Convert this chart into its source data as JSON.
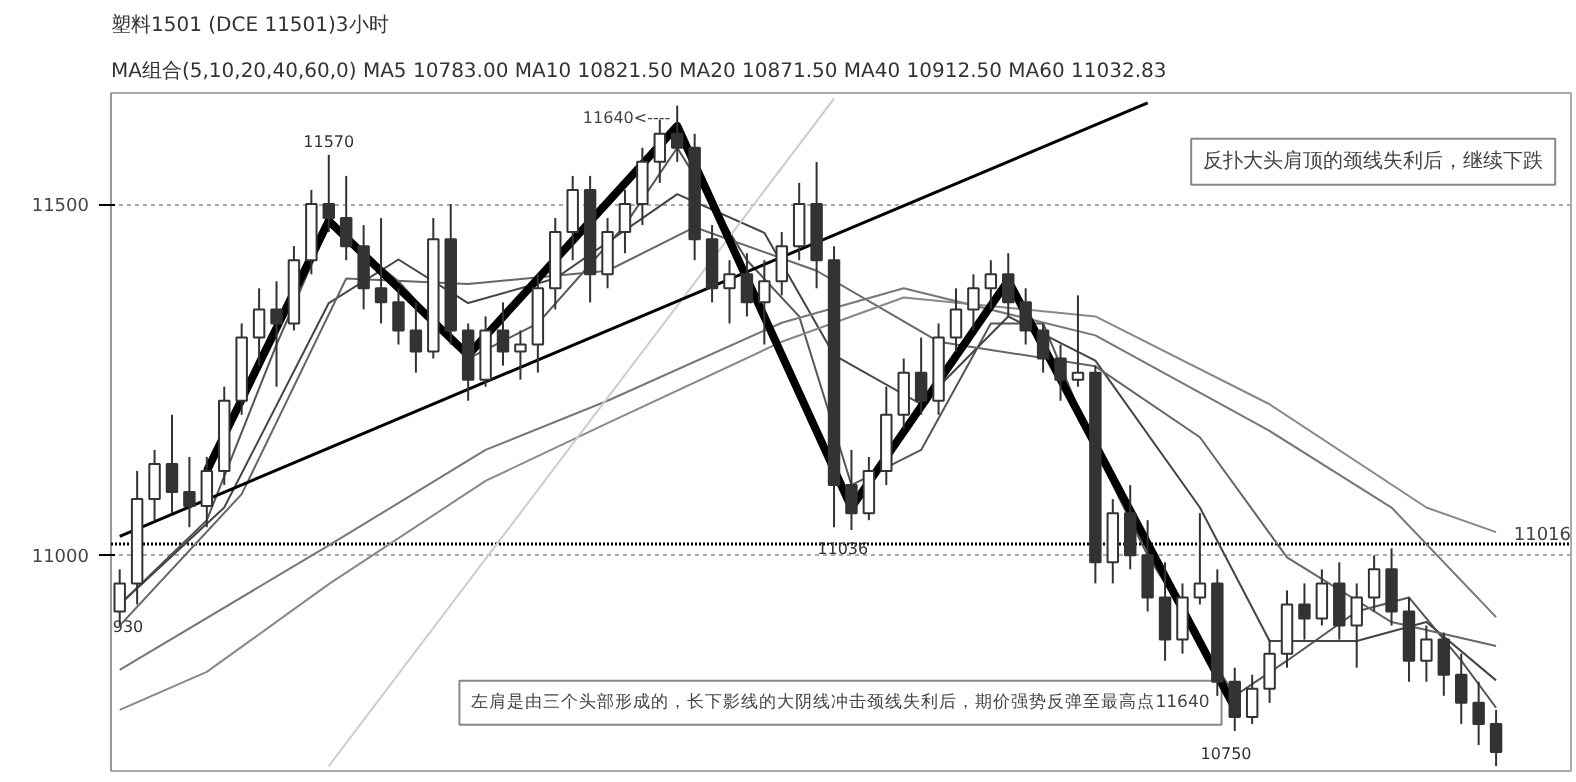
{
  "chart_data": {
    "type": "candlestick",
    "title": "塑料1501 (DCE 11501)3小时",
    "subtitle": "MA组合(5,10,20,40,60,0)  MA5 10783.00    MA10 10821.50    MA20 10871.50    MA40 10912.50    MA60 11032.83",
    "categories": [
      null,
      null,
      null,
      null,
      null,
      null,
      null,
      null,
      null,
      null,
      null,
      null,
      null,
      null,
      null,
      null,
      null,
      null,
      null,
      null,
      null,
      null,
      null,
      null,
      null,
      null,
      null,
      null,
      null,
      null,
      null,
      null,
      null,
      null,
      null,
      null,
      null,
      null,
      null,
      null,
      null,
      null,
      null,
      null,
      null,
      null,
      null,
      null,
      null,
      null,
      null,
      null,
      null,
      null,
      null,
      null,
      null,
      null,
      null,
      null,
      null,
      null,
      null,
      null,
      null,
      null,
      null,
      null,
      null,
      null,
      null,
      null,
      null,
      null,
      null,
      null,
      null,
      null,
      null,
      null
    ],
    "color": "#333333",
    "ohlc": [
      [
        10920,
        10980,
        10900,
        10960
      ],
      [
        10960,
        11120,
        10930,
        11080
      ],
      [
        11080,
        11150,
        11050,
        11130
      ],
      [
        11130,
        11200,
        11060,
        11090
      ],
      [
        11090,
        11140,
        11040,
        11070
      ],
      [
        11070,
        11140,
        11040,
        11120
      ],
      [
        11120,
        11240,
        11100,
        11220
      ],
      [
        11220,
        11330,
        11200,
        11310
      ],
      [
        11310,
        11380,
        11270,
        11350
      ],
      [
        11350,
        11390,
        11240,
        11330
      ],
      [
        11330,
        11440,
        11320,
        11420
      ],
      [
        11420,
        11520,
        11400,
        11500
      ],
      [
        11500,
        11570,
        11460,
        11480
      ],
      [
        11480,
        11540,
        11420,
        11440
      ],
      [
        11440,
        11470,
        11350,
        11380
      ],
      [
        11380,
        11480,
        11330,
        11360
      ],
      [
        11360,
        11380,
        11300,
        11320
      ],
      [
        11320,
        11360,
        11260,
        11290
      ],
      [
        11290,
        11480,
        11280,
        11450
      ],
      [
        11450,
        11500,
        11300,
        11320
      ],
      [
        11320,
        11330,
        11220,
        11250
      ],
      [
        11250,
        11340,
        11240,
        11320
      ],
      [
        11320,
        11360,
        11270,
        11290
      ],
      [
        11290,
        11320,
        11250,
        11300
      ],
      [
        11300,
        11400,
        11260,
        11380
      ],
      [
        11380,
        11480,
        11350,
        11460
      ],
      [
        11460,
        11540,
        11420,
        11520
      ],
      [
        11520,
        11540,
        11360,
        11400
      ],
      [
        11400,
        11480,
        11380,
        11460
      ],
      [
        11460,
        11520,
        11430,
        11500
      ],
      [
        11500,
        11580,
        11470,
        11560
      ],
      [
        11560,
        11620,
        11530,
        11600
      ],
      [
        11600,
        11640,
        11560,
        11580
      ],
      [
        11580,
        11600,
        11420,
        11450
      ],
      [
        11450,
        11470,
        11360,
        11380
      ],
      [
        11380,
        11420,
        11330,
        11400
      ],
      [
        11400,
        11430,
        11340,
        11360
      ],
      [
        11360,
        11420,
        11300,
        11390
      ],
      [
        11390,
        11460,
        11370,
        11440
      ],
      [
        11440,
        11530,
        11420,
        11500
      ],
      [
        11500,
        11560,
        11380,
        11420
      ],
      [
        11420,
        11440,
        11040,
        11100
      ],
      [
        11100,
        11150,
        11036,
        11060
      ],
      [
        11060,
        11140,
        11050,
        11120
      ],
      [
        11120,
        11240,
        11100,
        11200
      ],
      [
        11200,
        11280,
        11180,
        11260
      ],
      [
        11260,
        11310,
        11200,
        11220
      ],
      [
        11220,
        11330,
        11200,
        11310
      ],
      [
        11310,
        11380,
        11290,
        11350
      ],
      [
        11350,
        11400,
        11320,
        11380
      ],
      [
        11380,
        11420,
        11350,
        11400
      ],
      [
        11400,
        11430,
        11340,
        11360
      ],
      [
        11360,
        11380,
        11300,
        11320
      ],
      [
        11320,
        11330,
        11260,
        11280
      ],
      [
        11280,
        11300,
        11220,
        11250
      ],
      [
        11250,
        11370,
        11240,
        11260
      ],
      [
        11260,
        11270,
        10960,
        10990
      ],
      [
        10990,
        11080,
        10960,
        11060
      ],
      [
        11060,
        11100,
        10980,
        11000
      ],
      [
        11000,
        11050,
        10920,
        10940
      ],
      [
        10940,
        10990,
        10850,
        10880
      ],
      [
        10880,
        10960,
        10860,
        10940
      ],
      [
        10940,
        11060,
        10930,
        10960
      ],
      [
        10960,
        10980,
        10800,
        10820
      ],
      [
        10820,
        10840,
        10750,
        10770
      ],
      [
        10770,
        10830,
        10760,
        10810
      ],
      [
        10810,
        10880,
        10790,
        10860
      ],
      [
        10860,
        10950,
        10840,
        10930
      ],
      [
        10930,
        10960,
        10880,
        10910
      ],
      [
        10910,
        10980,
        10900,
        10960
      ],
      [
        10960,
        10990,
        10880,
        10900
      ],
      [
        10900,
        10960,
        10840,
        10940
      ],
      [
        10940,
        11000,
        10920,
        10980
      ],
      [
        10980,
        11010,
        10900,
        10920
      ],
      [
        10920,
        10940,
        10820,
        10850
      ],
      [
        10850,
        10900,
        10820,
        10880
      ],
      [
        10880,
        10890,
        10800,
        10830
      ],
      [
        10830,
        10860,
        10760,
        10790
      ],
      [
        10790,
        10820,
        10730,
        10760
      ],
      [
        10760,
        10780,
        10700,
        10720
      ]
    ],
    "series": [
      {
        "type": "line",
        "color": "#555555",
        "values": [
          10930,
          null,
          null,
          null,
          null,
          11050,
          null,
          null,
          null,
          11300,
          null,
          null,
          11470,
          null,
          null,
          null,
          11390,
          null,
          null,
          null,
          11280,
          null,
          null,
          null,
          11330,
          null,
          null,
          null,
          null,
          11470,
          null,
          null,
          11580,
          null,
          null,
          null,
          11420,
          null,
          null,
          11340,
          null,
          null,
          11100,
          null,
          null,
          null,
          11150,
          null,
          null,
          null,
          11330,
          null,
          null,
          11330,
          null,
          null,
          11150,
          null,
          null,
          11000,
          null,
          null,
          null,
          null,
          10800,
          null,
          null,
          10850,
          null,
          null,
          null,
          10920,
          null,
          null,
          10940,
          null,
          null,
          10850,
          null,
          10783
        ]
      },
      {
        "type": "line",
        "color": "#444444",
        "values": [
          10930,
          null,
          null,
          null,
          null,
          null,
          11068,
          null,
          null,
          null,
          null,
          null,
          11359,
          null,
          null,
          null,
          11421,
          null,
          null,
          null,
          11359,
          null,
          null,
          null,
          null,
          11394,
          null,
          null,
          null,
          null,
          null,
          null,
          11514,
          null,
          null,
          null,
          null,
          11459,
          null,
          null,
          null,
          11285,
          null,
          null,
          null,
          null,
          11215,
          null,
          null,
          null,
          null,
          11340,
          null,
          null,
          null,
          null,
          11277,
          null,
          null,
          null,
          null,
          null,
          11068,
          null,
          null,
          null,
          10878,
          null,
          null,
          null,
          null,
          10878,
          null,
          null,
          null,
          10905,
          null,
          null,
          null,
          10822
        ]
      },
      {
        "type": "line",
        "color": "#666666",
        "values": [
          10900,
          null,
          null,
          null,
          null,
          null,
          null,
          11087,
          null,
          null,
          null,
          null,
          null,
          11394,
          null,
          null,
          null,
          null,
          null,
          null,
          11386,
          null,
          null,
          null,
          null,
          null,
          null,
          null,
          11405,
          null,
          null,
          null,
          null,
          11467,
          null,
          null,
          null,
          null,
          null,
          null,
          11405,
          null,
          null,
          null,
          null,
          null,
          null,
          11304,
          null,
          null,
          null,
          null,
          null,
          null,
          null,
          null,
          11269,
          null,
          null,
          null,
          null,
          null,
          11168,
          null,
          null,
          null,
          null,
          10997,
          null,
          null,
          null,
          null,
          null,
          10905,
          null,
          null,
          null,
          null,
          null,
          10871
        ]
      },
      {
        "type": "line",
        "color": "#777777",
        "values": [
          10837,
          null,
          null,
          null,
          null,
          null,
          null,
          null,
          null,
          null,
          null,
          null,
          11014,
          null,
          null,
          null,
          null,
          null,
          null,
          null,
          null,
          11150,
          null,
          null,
          null,
          null,
          null,
          null,
          11220,
          null,
          null,
          null,
          null,
          null,
          null,
          null,
          null,
          null,
          11331,
          null,
          null,
          null,
          null,
          null,
          null,
          11380,
          null,
          null,
          null,
          null,
          null,
          null,
          null,
          null,
          null,
          null,
          11313,
          null,
          null,
          null,
          null,
          null,
          null,
          null,
          null,
          null,
          11177,
          null,
          null,
          null,
          null,
          null,
          null,
          11068,
          null,
          null,
          null,
          null,
          null,
          10912
        ]
      },
      {
        "type": "line",
        "color": "#888888",
        "values": [
          10780,
          null,
          null,
          null,
          null,
          10834,
          null,
          null,
          null,
          null,
          null,
          null,
          10959,
          null,
          null,
          null,
          null,
          null,
          null,
          null,
          null,
          11106,
          null,
          null,
          null,
          null,
          null,
          null,
          11188,
          null,
          null,
          null,
          null,
          null,
          null,
          null,
          null,
          null,
          11304,
          null,
          null,
          null,
          null,
          null,
          null,
          11367,
          null,
          null,
          null,
          null,
          null,
          null,
          null,
          null,
          null,
          null,
          11340,
          null,
          null,
          null,
          null,
          null,
          null,
          null,
          null,
          null,
          11215,
          null,
          null,
          null,
          null,
          null,
          null,
          null,
          null,
          11068,
          null,
          null,
          null,
          11033
        ]
      },
      {
        "type": "line",
        "color": "#cccccc",
        "values": [
          null,
          null,
          null,
          null,
          null,
          null,
          null,
          null,
          null,
          null,
          null,
          null,
          10700,
          null,
          null,
          null,
          null,
          null,
          null,
          null,
          null,
          null,
          null,
          null,
          null,
          null,
          null,
          null,
          null,
          null,
          null,
          null,
          null,
          null,
          null,
          null,
          null,
          null,
          null,
          null,
          null,
          11650,
          null,
          null,
          null,
          null,
          null,
          null,
          null,
          null,
          null,
          null,
          null,
          null,
          null,
          null,
          null,
          null,
          null,
          null,
          null,
          null,
          null,
          null,
          null,
          null,
          null,
          null,
          null,
          null,
          null,
          null,
          null,
          null,
          null,
          null,
          null,
          null,
          null,
          null
        ]
      },
      {
        "type": "line",
        "color": "#000000",
        "values": [
          11027,
          null,
          null,
          null,
          null,
          null,
          null,
          null,
          null,
          null,
          null,
          null,
          null,
          null,
          null,
          null,
          null,
          null,
          null,
          null,
          null,
          null,
          null,
          null,
          null,
          null,
          null,
          null,
          null,
          null,
          null,
          null,
          null,
          null,
          null,
          null,
          null,
          null,
          null,
          null,
          null,
          null,
          null,
          null,
          null,
          null,
          null,
          null,
          null,
          null,
          null,
          null,
          null,
          null,
          null,
          null,
          null,
          null,
          null,
          11644,
          null,
          null,
          null,
          null,
          null,
          null,
          null,
          null,
          null,
          null,
          null,
          null,
          null,
          null,
          null,
          null,
          null,
          null,
          null,
          null
        ]
      },
      {
        "type": "line",
        "color": "#000000",
        "values": [
          null,
          null,
          null,
          null,
          null,
          11120,
          null,
          null,
          null,
          null,
          null,
          null,
          11476,
          null,
          null,
          null,
          null,
          null,
          null,
          null,
          11285,
          null,
          null,
          null,
          null,
          null,
          null,
          null,
          null,
          null,
          null,
          null,
          11611,
          null,
          null,
          null,
          null,
          null,
          null,
          null,
          null,
          null,
          11068,
          null,
          null,
          null,
          null,
          null,
          null,
          null,
          null,
          11391,
          null,
          null,
          null,
          null,
          null,
          null,
          null,
          null,
          null,
          null,
          null,
          null,
          10783,
          null,
          null,
          null,
          null,
          null,
          null,
          null,
          null,
          null,
          null,
          null,
          null,
          null,
          null,
          null
        ]
      }
    ],
    "ylim": [
      10693,
      11658
    ],
    "yticks": [
      11000,
      11500
    ],
    "grid": "y",
    "marker": "none",
    "line_style": "solid",
    "ref_lines": [
      {
        "axis": "y",
        "value": 11016,
        "label": "11016",
        "line_style": "dotted",
        "color": "#000000"
      }
    ],
    "annotations": [
      {
        "text": "11570",
        "y": 11570
      },
      "11640<----",
      {
        "text": "11036",
        "y": 11036
      },
      {
        "text": "10750",
        "y": 10750
      },
      {
        "text": "930",
        "y": 10930
      },
      "左肩是由三个头部形成的，长下影线的大阴线冲击颈线失利后，期价强势反弹至最高点11640",
      "反扑大头肩顶的颈线失利后，继续下跌"
    ]
  }
}
